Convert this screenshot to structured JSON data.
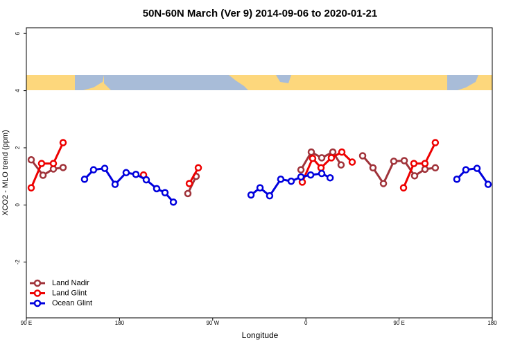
{
  "chart_data": {
    "type": "line",
    "title": "50N-60N March (Ver 9)   2014-09-06 to 2020-01-21",
    "x_label": "Longitude",
    "y_label": "XCO2 - MLO trend (ppm)",
    "xlim": [
      90,
      540
    ],
    "ylim": [
      -3.95,
      6.2
    ],
    "xticks": [
      {
        "value": 90,
        "label": "90 E"
      },
      180,
      {
        "value": 270,
        "label": "90 W"
      },
      {
        "value": 360,
        "label": "0"
      },
      {
        "value": 450,
        "label": "90 E"
      },
      {
        "value": 540,
        "label": "180"
      }
    ],
    "yticks": [
      -2,
      0,
      2,
      4,
      6
    ],
    "legend": "bottom-left",
    "series": [
      {
        "name": "Land Nadir",
        "color": "#a0333a",
        "x": [
          94.7,
          106.1,
          116.1,
          125.5,
          null,
          246,
          254,
          null,
          355.2,
          365.2,
          375.3,
          386,
          394,
          null,
          414.8,
          424.8,
          434.9,
          444.9,
          455,
          465,
          475,
          485
        ],
        "values": [
          1.58,
          1.04,
          1.26,
          1.31,
          null,
          0.4,
          1.0,
          null,
          1.23,
          1.85,
          1.65,
          1.85,
          1.4,
          null,
          1.72,
          1.3,
          0.75,
          1.53,
          1.55,
          1.02,
          1.25,
          1.3
        ]
      },
      {
        "name": "Land Glint",
        "color": "#ee0000",
        "x": [
          94.7,
          104.7,
          116.1,
          125.5,
          null,
          203.2,
          null,
          247.4,
          256.1,
          null,
          356.5,
          366.5,
          374.6,
          384.6,
          394.7,
          404.7,
          null,
          454.3,
          464.3,
          475,
          485
        ],
        "values": [
          0.6,
          1.45,
          1.45,
          2.18,
          null,
          1.05,
          null,
          0.75,
          1.3,
          null,
          0.8,
          1.63,
          1.3,
          1.65,
          1.85,
          1.5,
          null,
          0.6,
          1.45,
          1.45,
          2.18
        ]
      },
      {
        "name": "Ocean Glint",
        "color": "#0000dd",
        "x": [
          146.2,
          154.9,
          165.7,
          175.7,
          186.4,
          195.8,
          205.8,
          215.9,
          223.9,
          232,
          null,
          307,
          315.7,
          325,
          335.7,
          345.8,
          355.2,
          364.6,
          375.3,
          383.4,
          null,
          505.8,
          514.5,
          525.3,
          536
        ],
        "values": [
          0.9,
          1.23,
          1.28,
          0.72,
          1.13,
          1.07,
          0.88,
          0.57,
          0.43,
          0.1,
          null,
          0.35,
          0.6,
          0.32,
          0.9,
          0.83,
          0.98,
          1.05,
          1.1,
          0.95,
          null,
          0.9,
          1.23,
          1.28,
          0.72
        ]
      }
    ]
  }
}
